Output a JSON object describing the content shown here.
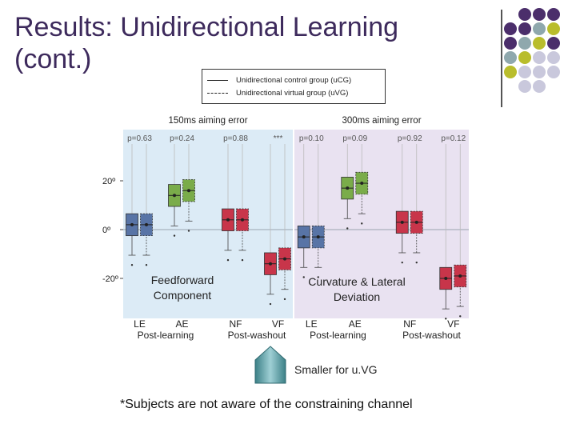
{
  "slide": {
    "title": "Results: Unidirectional Learning (cont.)",
    "legend": {
      "control": "Unidirectional control group (uCG)",
      "virtual": "Unidirectional virtual group (uVG)"
    },
    "caption_left": "Feedforward Component",
    "caption_right": "Curvature & Lateral Deviation",
    "smaller_note": "Smaller for u.VG",
    "footnote": "*Subjects are not aware of the constraining channel",
    "colors": {
      "title": "#3d2a5c",
      "purple": "#4b2e6b",
      "teal": "#8fa8ad",
      "olive": "#b9bd2c",
      "lavender": "#c9c8dc",
      "blue_box": "#5874a6",
      "green_box": "#7aac4a",
      "red_box": "#c8354a",
      "left_panel": "#dcebf6",
      "right_panel": "#e9e2f1"
    }
  },
  "chart_data": [
    {
      "type": "box",
      "title": "150ms aiming error",
      "y_ticks": [
        "20º",
        "0º",
        "-20º"
      ],
      "ylim": [
        -25,
        40
      ],
      "groups": [
        "LE",
        "AE",
        "NF",
        "VF"
      ],
      "group_sections": [
        "Post-learning",
        "Post-washout"
      ],
      "p_values": [
        "p=0.63",
        "p=0.24",
        "p=0.88",
        "***"
      ],
      "series": [
        {
          "name": "Unidirectional control group (uCG)",
          "medians": [
            2,
            14,
            4,
            -14
          ]
        },
        {
          "name": "Unidirectional virtual group (uVG)",
          "medians": [
            2,
            16,
            4,
            -12
          ]
        }
      ],
      "colors": [
        "#5874a6",
        "#7aac4a",
        "#c8354a",
        "#c8354a"
      ]
    },
    {
      "type": "box",
      "title": "300ms aiming error",
      "y_ticks": [
        "20º",
        "0º",
        "-20º"
      ],
      "ylim": [
        -25,
        40
      ],
      "groups": [
        "LE",
        "AE",
        "NF",
        "VF"
      ],
      "group_sections": [
        "Post-learning",
        "Post-washout"
      ],
      "p_values": [
        "p=0.10",
        "p=0.09",
        "p=0.92",
        "p=0.12"
      ],
      "series": [
        {
          "name": "Unidirectional control group (uCG)",
          "medians": [
            -3,
            17,
            3,
            -20
          ]
        },
        {
          "name": "Unidirectional virtual group (uVG)",
          "medians": [
            -3,
            19,
            3,
            -19
          ]
        }
      ],
      "colors": [
        "#5874a6",
        "#7aac4a",
        "#c8354a",
        "#c8354a"
      ]
    }
  ]
}
